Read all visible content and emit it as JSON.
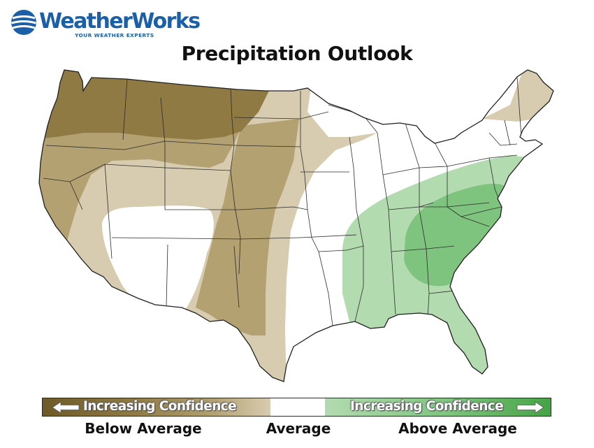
{
  "brand": {
    "name": "WeatherWorks",
    "tagline": "YOUR WEATHER EXPERTS",
    "color": "#1a5fa8"
  },
  "title": "Precipitation Outlook",
  "map_colors": {
    "below_strong": "#8f7a44",
    "below_moderate": "#b3a171",
    "below_light": "#d8ccb0",
    "average": "#ffffff",
    "above_light": "#b3dbb0",
    "above_moderate": "#7ec47e"
  },
  "legend": {
    "left_text": "Increasing Confidence",
    "right_text": "Increasing Confidence",
    "categories": [
      "Below Average",
      "Average",
      "Above Average"
    ],
    "gradient": [
      "#6e5a26",
      "#8f7a44",
      "#b3a171",
      "#d8ccb0",
      "#ffffff",
      "#b3dbb0",
      "#7ec47e",
      "#46a346"
    ]
  }
}
